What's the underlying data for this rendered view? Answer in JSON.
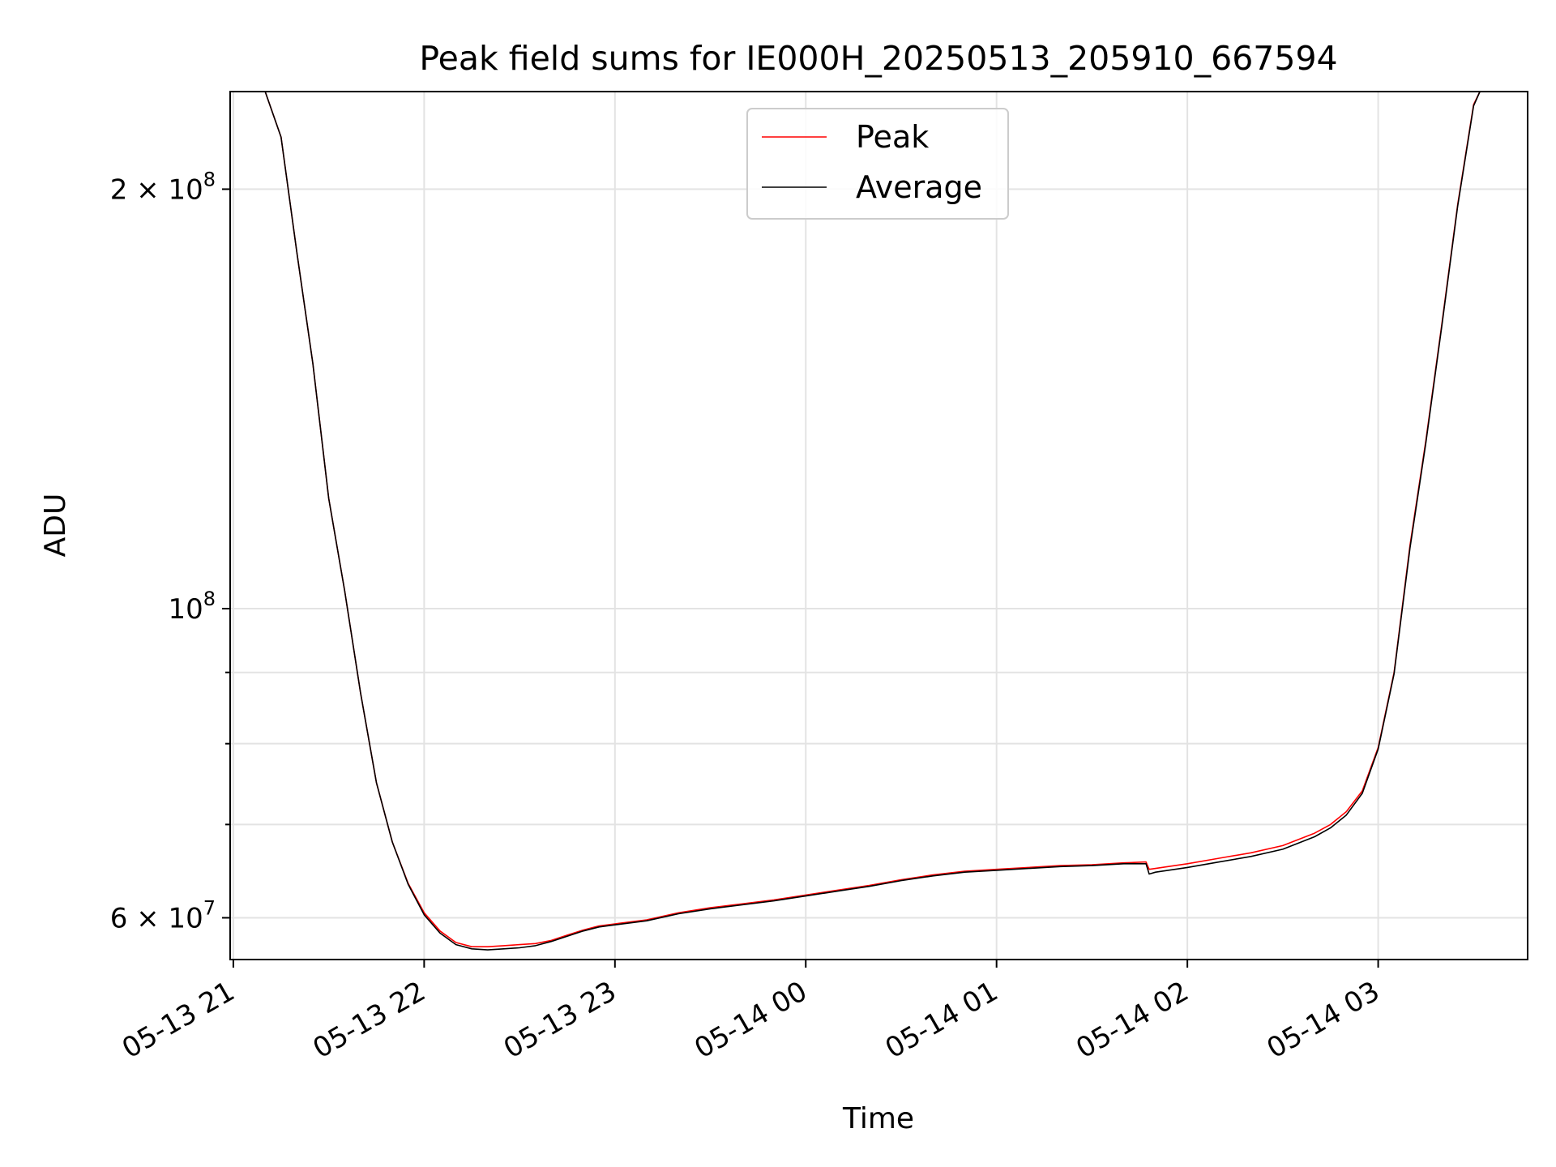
{
  "chart_data": {
    "type": "line",
    "title": "Peak field sums for IE000H_20250513_205910_667594",
    "xlabel": "Time",
    "ylabel": "ADU",
    "yscale": "log",
    "grid": true,
    "legend_position": "top-center",
    "xlim": [
      "2025-05-13 20:59",
      "2025-05-14 03:47"
    ],
    "ylim": [
      56000000,
      235000000
    ],
    "x_ticks": [
      "05-13 21",
      "05-13 22",
      "05-13 23",
      "05-14 00",
      "05-14 01",
      "05-14 02",
      "05-14 03"
    ],
    "y_ticks_major": [
      {
        "value": 60000000,
        "base": "6 × 10",
        "exp": "7"
      },
      {
        "value": 100000000,
        "base": "10",
        "exp": "8"
      },
      {
        "value": 200000000,
        "base": "2 × 10",
        "exp": "8"
      }
    ],
    "y_ticks_minor": [
      70000000,
      80000000,
      90000000
    ],
    "colors": {
      "peak": "#ff0000",
      "average": "#000000"
    },
    "series": [
      {
        "name": "Peak",
        "x": [
          "2025-05-13 21:00",
          "2025-05-13 21:05",
          "2025-05-13 21:10",
          "2025-05-13 21:15",
          "2025-05-13 21:20",
          "2025-05-13 21:25",
          "2025-05-13 21:30",
          "2025-05-13 21:35",
          "2025-05-13 21:40",
          "2025-05-13 21:45",
          "2025-05-13 21:50",
          "2025-05-13 21:55",
          "2025-05-13 22:00",
          "2025-05-13 22:05",
          "2025-05-13 22:10",
          "2025-05-13 22:15",
          "2025-05-13 22:20",
          "2025-05-13 22:25",
          "2025-05-13 22:30",
          "2025-05-13 22:35",
          "2025-05-13 22:40",
          "2025-05-13 22:45",
          "2025-05-13 22:50",
          "2025-05-13 22:55",
          "2025-05-13 23:00",
          "2025-05-13 23:10",
          "2025-05-13 23:20",
          "2025-05-13 23:30",
          "2025-05-13 23:40",
          "2025-05-13 23:50",
          "2025-05-14 00:00",
          "2025-05-14 00:10",
          "2025-05-14 00:20",
          "2025-05-14 00:30",
          "2025-05-14 00:40",
          "2025-05-14 00:50",
          "2025-05-14 01:00",
          "2025-05-14 01:10",
          "2025-05-14 01:20",
          "2025-05-14 01:30",
          "2025-05-14 01:40",
          "2025-05-14 01:47",
          "2025-05-14 01:48",
          "2025-05-14 01:50",
          "2025-05-14 02:00",
          "2025-05-14 02:10",
          "2025-05-14 02:20",
          "2025-05-14 02:30",
          "2025-05-14 02:40",
          "2025-05-14 02:45",
          "2025-05-14 02:50",
          "2025-05-14 02:55",
          "2025-05-14 03:00",
          "2025-05-14 03:05",
          "2025-05-14 03:10",
          "2025-05-14 03:15",
          "2025-05-14 03:20",
          "2025-05-14 03:25",
          "2025-05-14 03:30",
          "2025-05-14 03:32"
        ],
        "y": [
          235000000,
          235000000,
          235000000,
          218000000,
          180000000,
          150000000,
          120000000,
          103000000,
          87000000,
          75000000,
          68000000,
          63500000,
          60500000,
          58700000,
          57600000,
          57200000,
          57200000,
          57300000,
          57400000,
          57500000,
          57800000,
          58300000,
          58800000,
          59200000,
          59400000,
          59800000,
          60500000,
          61000000,
          61400000,
          61800000,
          62300000,
          62800000,
          63300000,
          63900000,
          64400000,
          64800000,
          65000000,
          65200000,
          65400000,
          65500000,
          65700000,
          65800000,
          65000000,
          65100000,
          65600000,
          66200000,
          66800000,
          67600000,
          69000000,
          70000000,
          71500000,
          74000000,
          79500000,
          90000000,
          111000000,
          132000000,
          160000000,
          195000000,
          230000000,
          235000000
        ]
      },
      {
        "name": "Average",
        "x": [
          "2025-05-13 21:00",
          "2025-05-13 21:05",
          "2025-05-13 21:10",
          "2025-05-13 21:15",
          "2025-05-13 21:20",
          "2025-05-13 21:25",
          "2025-05-13 21:30",
          "2025-05-13 21:35",
          "2025-05-13 21:40",
          "2025-05-13 21:45",
          "2025-05-13 21:50",
          "2025-05-13 21:55",
          "2025-05-13 22:00",
          "2025-05-13 22:05",
          "2025-05-13 22:10",
          "2025-05-13 22:15",
          "2025-05-13 22:20",
          "2025-05-13 22:25",
          "2025-05-13 22:30",
          "2025-05-13 22:35",
          "2025-05-13 22:40",
          "2025-05-13 22:45",
          "2025-05-13 22:50",
          "2025-05-13 22:55",
          "2025-05-13 23:00",
          "2025-05-13 23:10",
          "2025-05-13 23:20",
          "2025-05-13 23:30",
          "2025-05-13 23:40",
          "2025-05-13 23:50",
          "2025-05-14 00:00",
          "2025-05-14 00:10",
          "2025-05-14 00:20",
          "2025-05-14 00:30",
          "2025-05-14 00:40",
          "2025-05-14 00:50",
          "2025-05-14 01:00",
          "2025-05-14 01:10",
          "2025-05-14 01:20",
          "2025-05-14 01:30",
          "2025-05-14 01:40",
          "2025-05-14 01:47",
          "2025-05-14 01:48",
          "2025-05-14 01:50",
          "2025-05-14 02:00",
          "2025-05-14 02:10",
          "2025-05-14 02:20",
          "2025-05-14 02:30",
          "2025-05-14 02:40",
          "2025-05-14 02:45",
          "2025-05-14 02:50",
          "2025-05-14 02:55",
          "2025-05-14 03:00",
          "2025-05-14 03:05",
          "2025-05-14 03:10",
          "2025-05-14 03:15",
          "2025-05-14 03:20",
          "2025-05-14 03:25",
          "2025-05-14 03:30",
          "2025-05-14 03:32"
        ],
        "y": [
          235000000,
          235000000,
          235000000,
          218000000,
          180000000,
          150000000,
          120000000,
          103000000,
          87000000,
          75000000,
          68000000,
          63400000,
          60300000,
          58500000,
          57400000,
          57000000,
          56900000,
          57000000,
          57100000,
          57300000,
          57700000,
          58200000,
          58700000,
          59100000,
          59300000,
          59700000,
          60400000,
          60900000,
          61300000,
          61700000,
          62200000,
          62700000,
          63200000,
          63800000,
          64300000,
          64700000,
          64900000,
          65100000,
          65300000,
          65400000,
          65600000,
          65600000,
          64500000,
          64700000,
          65200000,
          65800000,
          66400000,
          67200000,
          68600000,
          69600000,
          71100000,
          73700000,
          79300000,
          89800000,
          110500000,
          131500000,
          159500000,
          194500000,
          229500000,
          235000000
        ]
      }
    ]
  }
}
